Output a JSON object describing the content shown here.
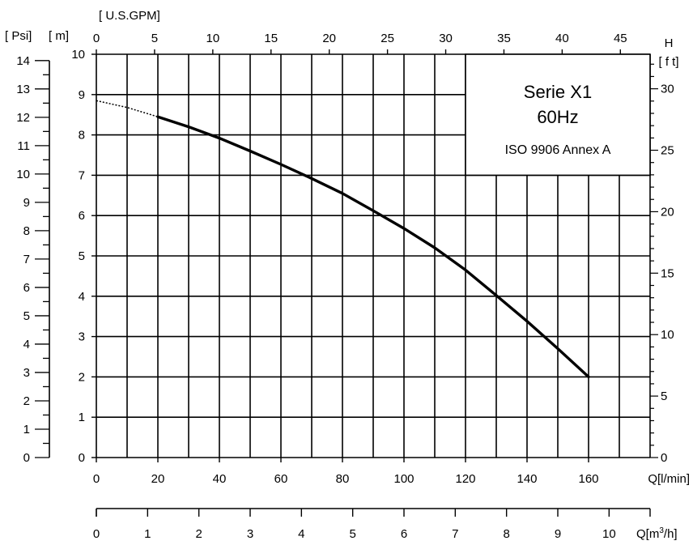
{
  "chart_data": {
    "type": "line",
    "title": "",
    "legend_box": {
      "lines": [
        "Serie X1",
        "60Hz",
        "ISO 9906 Annex A"
      ],
      "placement": "top-right"
    },
    "x_primary": {
      "label": "Q[l/min]",
      "range": [
        0,
        180
      ],
      "tick_labels": [
        "0",
        "20",
        "40",
        "60",
        "80",
        "100",
        "120",
        "140",
        "160"
      ],
      "tick_values": [
        0,
        20,
        40,
        60,
        80,
        100,
        120,
        140,
        160
      ]
    },
    "x_top": {
      "label": "[ U.S.GPM]",
      "tick_labels": [
        "0",
        "5",
        "10",
        "15",
        "20",
        "25",
        "30",
        "35",
        "40",
        "45"
      ],
      "tick_values": [
        0,
        5,
        10,
        15,
        20,
        25,
        30,
        35,
        40,
        45
      ]
    },
    "x_bottom": {
      "label_base": "Q[m",
      "label_sup": "3",
      "label_end": "/h]",
      "tick_labels": [
        "0",
        "1",
        "2",
        "3",
        "4",
        "5",
        "6",
        "7",
        "8",
        "9",
        "10"
      ],
      "tick_values": [
        0,
        1,
        2,
        3,
        4,
        5,
        6,
        7,
        8,
        9,
        10
      ]
    },
    "y_primary": {
      "label": "[ m]",
      "range": [
        0,
        10
      ],
      "tick_labels": [
        "0",
        "1",
        "2",
        "3",
        "4",
        "5",
        "6",
        "7",
        "8",
        "9",
        "10"
      ],
      "tick_values": [
        0,
        1,
        2,
        3,
        4,
        5,
        6,
        7,
        8,
        9,
        10
      ]
    },
    "y_psi": {
      "label": "[ Psi]",
      "tick_labels": [
        "0",
        "1",
        "2",
        "3",
        "4",
        "5",
        "6",
        "7",
        "8",
        "9",
        "10",
        "11",
        "12",
        "13",
        "14"
      ],
      "tick_values": [
        0,
        1,
        2,
        3,
        4,
        5,
        6,
        7,
        8,
        9,
        10,
        11,
        12,
        13,
        14
      ]
    },
    "y_ft": {
      "label_top": "H",
      "label": "[ f t]",
      "tick_labels": [
        "0",
        "5",
        "10",
        "15",
        "20",
        "25",
        "30"
      ],
      "tick_values": [
        0,
        5,
        10,
        15,
        20,
        25,
        30
      ]
    },
    "grid": true,
    "series": [
      {
        "x": [
          0,
          10,
          20,
          30,
          40,
          50,
          60,
          70,
          80,
          90,
          100,
          110,
          120,
          130,
          140,
          150,
          160
        ],
        "y": [
          8.85,
          8.68,
          8.45,
          8.2,
          7.92,
          7.6,
          7.27,
          6.92,
          6.55,
          6.12,
          5.68,
          5.2,
          4.65,
          4.02,
          3.38,
          2.7,
          2.0
        ],
        "dashed_until": 20
      }
    ]
  }
}
